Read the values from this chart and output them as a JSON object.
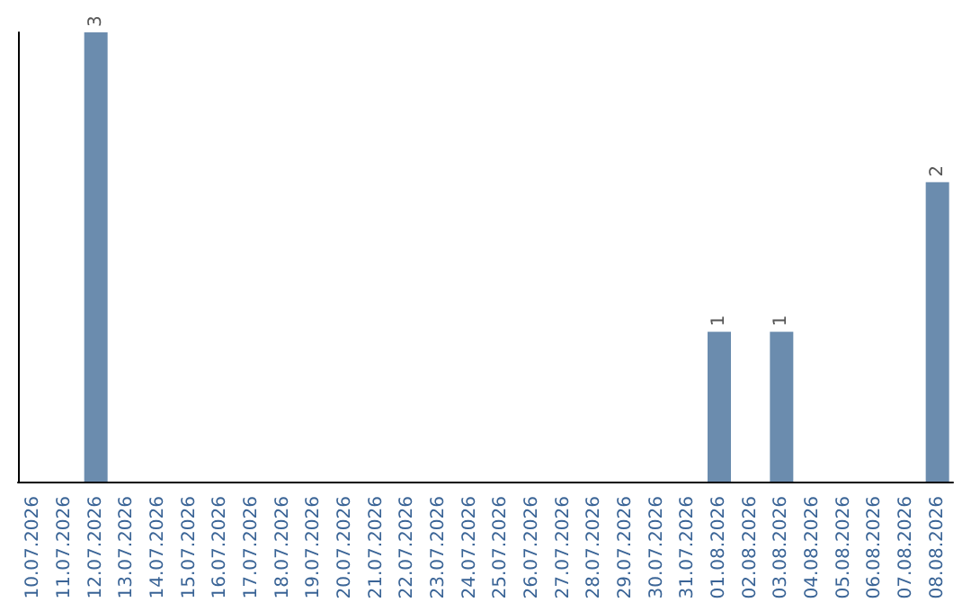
{
  "chart_data": {
    "type": "bar",
    "categories": [
      "10.07.2026",
      "11.07.2026",
      "12.07.2026",
      "13.07.2026",
      "14.07.2026",
      "15.07.2026",
      "16.07.2026",
      "17.07.2026",
      "18.07.2026",
      "19.07.2026",
      "20.07.2026",
      "21.07.2026",
      "22.07.2026",
      "23.07.2026",
      "24.07.2026",
      "25.07.2026",
      "26.07.2026",
      "27.07.2026",
      "28.07.2026",
      "29.07.2026",
      "30.07.2026",
      "31.07.2026",
      "01.08.2026",
      "02.08.2026",
      "03.08.2026",
      "04.08.2026",
      "05.08.2026",
      "06.08.2026",
      "07.08.2026",
      "08.08.2026"
    ],
    "values": [
      0,
      0,
      3,
      0,
      0,
      0,
      0,
      0,
      0,
      0,
      0,
      0,
      0,
      0,
      0,
      0,
      0,
      0,
      0,
      0,
      0,
      0,
      1,
      0,
      1,
      0,
      0,
      0,
      0,
      2
    ],
    "value_labels": [
      null,
      null,
      "3",
      null,
      null,
      null,
      null,
      null,
      null,
      null,
      null,
      null,
      null,
      null,
      null,
      null,
      null,
      null,
      null,
      null,
      null,
      null,
      "1",
      null,
      "1",
      null,
      null,
      null,
      null,
      "2"
    ],
    "color": "#6b8cae",
    "grid": false,
    "tick_labels": "x"
  }
}
